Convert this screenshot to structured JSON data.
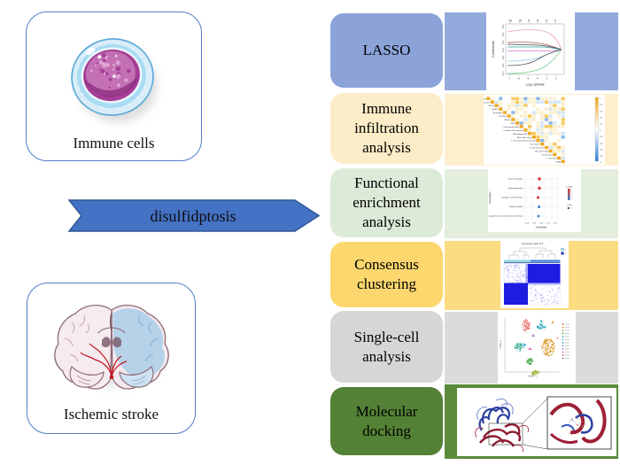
{
  "left": {
    "immune_label": "Immune cells",
    "stroke_label": "Ischemic stroke"
  },
  "arrow_label": "disulfidptosis",
  "steps": [
    {
      "id": "lasso",
      "label": "LASSO",
      "box_color": "#8ba3d9",
      "panel_color": "#93aadc"
    },
    {
      "id": "immune-infiltration",
      "label": "Immune\ninfiltration\nanalysis",
      "box_color": "#fdecc8",
      "panel_color": "#fdeecd"
    },
    {
      "id": "functional-enrichment",
      "label": "Functional\nenrichment\nanalysis",
      "box_color": "#dcead8",
      "panel_color": "#e3eedd"
    },
    {
      "id": "consensus-clustering",
      "label": "Consensus\nclustering",
      "box_color": "#fcd76e",
      "panel_color": "#fcdc80"
    },
    {
      "id": "single-cell",
      "label": "Single-cell\nanalysis",
      "box_color": "#d6d6d6",
      "panel_color": "#dbdbdb"
    },
    {
      "id": "molecular-docking",
      "label": "Molecular\ndocking",
      "box_color": "#538135",
      "panel_color": "#5b8a3b"
    }
  ],
  "thumbs": {
    "lasso": {
      "top_ticks": [
        "10",
        "10",
        "9",
        "8",
        "5",
        "2"
      ],
      "y_ticks": [
        "0.6",
        "0.4",
        "0.2",
        "0.0",
        "-0.2",
        "-0.4",
        "-0.6"
      ],
      "x_ticks": [
        "-7",
        "-6",
        "-5",
        "-4",
        "-3",
        "-2"
      ],
      "ylabel": "Coefficients",
      "xlabel": "Log Lambda",
      "line_colors": [
        "#e79cb1",
        "#b05a6a",
        "#444444",
        "#2fa3a3",
        "#cc77cc",
        "#86cfe3",
        "#555555",
        "#7ecf90"
      ]
    },
    "corr": {
      "rows": [
        "PDLIM1",
        "Monocytes",
        "ACTB",
        "IQGAP1",
        "Neutrophils",
        "SLC7A11",
        "MYH10",
        "INF2",
        "T cells gamma delta",
        "Dendritic cells activated",
        "Macrophages M2",
        "Mast cells resting",
        "T cells CD4 memory activated",
        "Eosinophils",
        "T cells CD4 naive",
        "NK cells resting",
        "B cells naive",
        "T cells CD8",
        "FLNA"
      ],
      "colorbar_ticks": [
        "1",
        "0.8",
        "0.6",
        "0.4",
        "0.2",
        "0",
        "-0.2",
        "-0.4",
        "-0.6",
        "-0.8",
        "-1"
      ],
      "cell_palette": [
        "#fbf0cf",
        "#ffffff",
        "#d6e6f7",
        "#f5c95c",
        "#8bb8e8",
        "#f0a822"
      ]
    },
    "enrich": {
      "terms": [
        "hormonal regulation",
        "platelet aggregation",
        "homotypic cell-cell adhesion",
        "platelet activation",
        "regulation of protein localization to membrane"
      ],
      "x_ticks": [
        "0.04",
        "0.06",
        "0.08",
        "0.10",
        "0.12"
      ],
      "xlabel": "GeneRatio",
      "ylabel": "Description",
      "legend_padjust": "p.adjust",
      "legend_count": "Count",
      "dot_color_high": "#e03030",
      "dot_color_low": "#3b7fc4"
    },
    "consensus": {
      "title": "consensus matrix k=2",
      "legend": [
        "1",
        "2"
      ],
      "cluster_colors": [
        "#8fd0dc",
        "#3a7bd5"
      ],
      "matrix_blue": "#1d1de0"
    },
    "umap": {
      "xlabel": "UMAP_1",
      "ylabel": "UMAP_2",
      "cluster_colors": [
        "#e4574f",
        "#d89018",
        "#9aa820",
        "#2fa02f",
        "#1fa087",
        "#2aa8b8",
        "#2a9ad0",
        "#6f7fd8",
        "#b06fd0",
        "#e06ab8",
        "#d05a80",
        "#8a6a50"
      ]
    },
    "docking": {
      "ribbon_colors": [
        "#2b3f9e",
        "#8e1b30"
      ]
    }
  },
  "palette": {
    "arrow_fill": "#4472c4",
    "arrow_border": "#2f5597",
    "card_border": "#4e7dc8"
  }
}
